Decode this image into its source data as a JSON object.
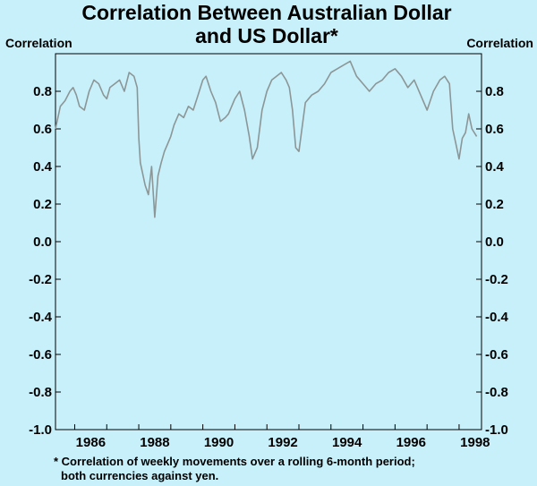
{
  "chart_data": {
    "type": "line",
    "title": [
      "Correlation Between Australian Dollar",
      "and US Dollar*"
    ],
    "ylabel_left": "Correlation",
    "ylabel_right": "Correlation",
    "ylim": [
      -1.0,
      1.0
    ],
    "yticks": [
      "0.8",
      "0.6",
      "0.4",
      "0.2",
      "0.0",
      "-0.2",
      "-0.4",
      "-0.6",
      "-0.8",
      "-1.0"
    ],
    "xlim": [
      1985.4,
      1998.7
    ],
    "xticks": [
      "1986",
      "1988",
      "1990",
      "1992",
      "1994",
      "1996",
      "1998"
    ],
    "grid": false,
    "line_color": "#8c9696",
    "footnote": [
      "* Correlation of weekly movements over a rolling 6-month period;",
      "both currencies against yen."
    ],
    "series": [
      {
        "x": [
          1985.4,
          1985.55,
          1985.7,
          1985.85,
          1985.95,
          1986.05,
          1986.15,
          1986.3,
          1986.45,
          1986.6,
          1986.75,
          1986.9,
          1987.0,
          1987.1,
          1987.25,
          1987.4,
          1987.55,
          1987.7,
          1987.85,
          1987.95,
          1988.0,
          1988.05,
          1988.1,
          1988.2,
          1988.3,
          1988.4,
          1988.5,
          1988.6,
          1988.7,
          1988.8,
          1988.9,
          1989.0,
          1989.1,
          1989.25,
          1989.4,
          1989.55,
          1989.7,
          1989.85,
          1990.0,
          1990.1,
          1990.25,
          1990.4,
          1990.55,
          1990.7,
          1990.8,
          1991.0,
          1991.15,
          1991.3,
          1991.45,
          1991.55,
          1991.7,
          1991.85,
          1992.0,
          1992.15,
          1992.3,
          1992.45,
          1992.6,
          1992.7,
          1992.8,
          1992.9,
          1993.0,
          1993.2,
          1993.4,
          1993.6,
          1993.8,
          1994.0,
          1994.2,
          1994.4,
          1994.6,
          1994.8,
          1995.0,
          1995.2,
          1995.4,
          1995.6,
          1995.8,
          1996.0,
          1996.2,
          1996.4,
          1996.6,
          1996.8,
          1997.0,
          1997.2,
          1997.4,
          1997.55,
          1997.7,
          1997.8,
          1997.9,
          1998.0,
          1998.1,
          1998.2,
          1998.3,
          1998.4,
          1998.55
        ],
        "y": [
          0.6,
          0.72,
          0.75,
          0.8,
          0.82,
          0.78,
          0.72,
          0.7,
          0.8,
          0.86,
          0.84,
          0.78,
          0.76,
          0.82,
          0.84,
          0.86,
          0.8,
          0.9,
          0.88,
          0.82,
          0.55,
          0.42,
          0.38,
          0.3,
          0.25,
          0.4,
          0.13,
          0.35,
          0.42,
          0.48,
          0.52,
          0.56,
          0.62,
          0.68,
          0.66,
          0.72,
          0.7,
          0.78,
          0.86,
          0.88,
          0.8,
          0.74,
          0.64,
          0.66,
          0.68,
          0.76,
          0.8,
          0.7,
          0.56,
          0.44,
          0.5,
          0.7,
          0.8,
          0.86,
          0.88,
          0.9,
          0.86,
          0.82,
          0.7,
          0.5,
          0.48,
          0.74,
          0.78,
          0.8,
          0.84,
          0.9,
          0.92,
          0.94,
          0.96,
          0.88,
          0.84,
          0.8,
          0.84,
          0.86,
          0.9,
          0.92,
          0.88,
          0.82,
          0.86,
          0.78,
          0.7,
          0.8,
          0.86,
          0.88,
          0.84,
          0.6,
          0.52,
          0.44,
          0.55,
          0.58,
          0.68,
          0.6,
          0.56
        ]
      }
    ]
  }
}
